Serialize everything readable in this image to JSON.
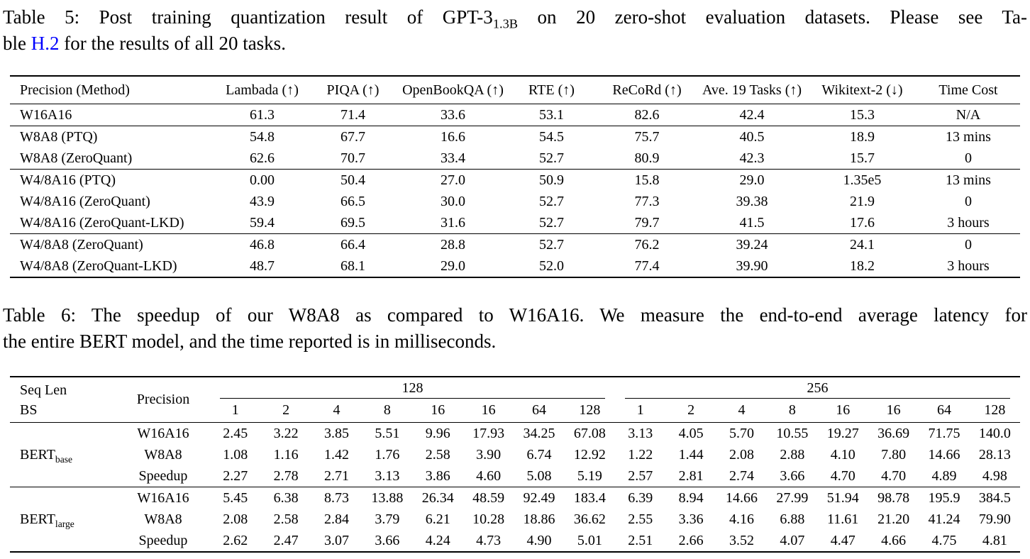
{
  "page": {
    "background_color": "#ffffff",
    "text_color": "#000000",
    "link_color": "#0000ff"
  },
  "table5": {
    "caption": {
      "line1_text": "Table 5: Post training quantization result of GPT-3",
      "line1_subscript": "1.3B",
      "line1_rest": " on 20 zero-shot evaluation datasets. Please see Ta-",
      "line2_before_link": "ble ",
      "link_text": "H.2",
      "line2_after_link": " for the results of all 20 tasks."
    },
    "columns": [
      "Precision (Method)",
      "Lambada (↑)",
      "PIQA (↑)",
      "OpenBookQA (↑)",
      "RTE (↑)",
      "ReCoRd (↑)",
      "Ave. 19 Tasks (↑)",
      "Wikitext-2 (↓)",
      "Time Cost"
    ],
    "groups": [
      {
        "rows": [
          [
            "W16A16",
            "61.3",
            "71.4",
            "33.6",
            "53.1",
            "82.6",
            "42.4",
            "15.3",
            "N/A"
          ]
        ]
      },
      {
        "rows": [
          [
            "W8A8 (PTQ)",
            "54.8",
            "67.7",
            "16.6",
            "54.5",
            "75.7",
            "40.5",
            "18.9",
            "13 mins"
          ],
          [
            "W8A8 (ZeroQuant)",
            "62.6",
            "70.7",
            "33.4",
            "52.7",
            "80.9",
            "42.3",
            "15.7",
            "0"
          ]
        ]
      },
      {
        "rows": [
          [
            "W4/8A16 (PTQ)",
            "0.00",
            "50.4",
            "27.0",
            "50.9",
            "15.8",
            "29.0",
            "1.35e5",
            "13 mins"
          ],
          [
            "W4/8A16 (ZeroQuant)",
            "43.9",
            "66.5",
            "30.0",
            "52.7",
            "77.3",
            "39.38",
            "21.9",
            "0"
          ],
          [
            "W4/8A16 (ZeroQuant-LKD)",
            "59.4",
            "69.5",
            "31.6",
            "52.7",
            "79.7",
            "41.5",
            "17.6",
            "3 hours"
          ]
        ]
      },
      {
        "rows": [
          [
            "W4/8A8 (ZeroQuant)",
            "46.8",
            "66.4",
            "28.8",
            "52.7",
            "76.2",
            "39.24",
            "24.1",
            "0"
          ],
          [
            "W4/8A8 (ZeroQuant-LKD)",
            "48.7",
            "68.1",
            "29.0",
            "52.0",
            "77.4",
            "39.90",
            "18.2",
            "3 hours"
          ]
        ]
      }
    ]
  },
  "table6": {
    "caption": {
      "line1": "Table 6: The speedup of our W8A8 as compared to W16A16. We measure the end-to-end average latency for",
      "line2": "the entire BERT model, and the time reported is in milliseconds."
    },
    "header": {
      "col1_line1": "Seq Len",
      "col1_line2": "BS",
      "precision_label": "Precision",
      "seq_len_groups": [
        "128",
        "256"
      ],
      "batch_sizes": [
        "1",
        "2",
        "4",
        "8",
        "16",
        "16",
        "64",
        "128"
      ]
    },
    "groups": [
      {
        "model": "BERT",
        "model_subscript": "base",
        "rows": [
          {
            "label": "W16A16",
            "values": [
              "2.45",
              "3.22",
              "3.85",
              "5.51",
              "9.96",
              "17.93",
              "34.25",
              "67.08",
              "3.13",
              "4.05",
              "5.70",
              "10.55",
              "19.27",
              "36.69",
              "71.75",
              "140.0"
            ]
          },
          {
            "label": "W8A8",
            "values": [
              "1.08",
              "1.16",
              "1.42",
              "1.76",
              "2.58",
              "3.90",
              "6.74",
              "12.92",
              "1.22",
              "1.44",
              "2.08",
              "2.88",
              "4.10",
              "7.80",
              "14.66",
              "28.13"
            ]
          },
          {
            "label": "Speedup",
            "values": [
              "2.27",
              "2.78",
              "2.71",
              "3.13",
              "3.86",
              "4.60",
              "5.08",
              "5.19",
              "2.57",
              "2.81",
              "2.74",
              "3.66",
              "4.70",
              "4.70",
              "4.89",
              "4.98"
            ]
          }
        ]
      },
      {
        "model": "BERT",
        "model_subscript": "large",
        "rows": [
          {
            "label": "W16A16",
            "values": [
              "5.45",
              "6.38",
              "8.73",
              "13.88",
              "26.34",
              "48.59",
              "92.49",
              "183.4",
              "6.39",
              "8.94",
              "14.66",
              "27.99",
              "51.94",
              "98.78",
              "195.9",
              "384.5"
            ]
          },
          {
            "label": "W8A8",
            "values": [
              "2.08",
              "2.58",
              "2.84",
              "3.79",
              "6.21",
              "10.28",
              "18.86",
              "36.62",
              "2.55",
              "3.36",
              "4.16",
              "6.88",
              "11.61",
              "21.20",
              "41.24",
              "79.90"
            ]
          },
          {
            "label": "Speedup",
            "values": [
              "2.62",
              "2.47",
              "3.07",
              "3.66",
              "4.24",
              "4.73",
              "4.90",
              "5.01",
              "2.51",
              "2.66",
              "3.52",
              "4.07",
              "4.47",
              "4.66",
              "4.75",
              "4.81"
            ]
          }
        ]
      }
    ]
  }
}
